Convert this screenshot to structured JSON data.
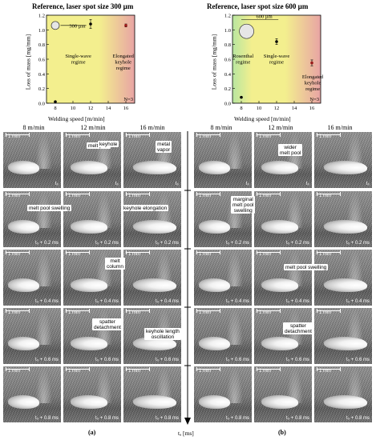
{
  "charts": [
    {
      "title": "Reference, laser spot size 300 µm",
      "spot_label": "300 µm",
      "ylabel": "Loss of mass [mg/mm]",
      "xlabel": "Welding speed [m/min]",
      "n_label": "N=3",
      "yticks": [
        "0.0",
        "0.2",
        "0.4",
        "0.6",
        "0.8",
        "1.0",
        "1.2"
      ],
      "xticks": [
        "8",
        "10",
        "12",
        "14",
        "16"
      ],
      "regimes": [
        {
          "label": "Single-wave\nregime"
        },
        {
          "label": "Elongated\nkeyhole\nregime"
        }
      ],
      "colors": {
        "yellow": "#f3ef8e",
        "red": "#e8a4a4",
        "green": "#b8e6a0"
      }
    },
    {
      "title": "Reference, laser spot size 600 µm",
      "spot_label": "600 µm",
      "ylabel": "Loss of mass [mg/mm]",
      "xlabel": "Welding speed [m/min]",
      "n_label": "N=3",
      "yticks": [
        "0.0",
        "0.2",
        "0.4",
        "0.6",
        "0.8",
        "1.0",
        "1.2"
      ],
      "xticks": [
        "8",
        "10",
        "12",
        "14",
        "16"
      ],
      "regimes": [
        {
          "label": "Rosenthal\nregime"
        },
        {
          "label": "Single-wave\nregime"
        },
        {
          "label": "Elongated\nkeyhole\nregime"
        }
      ],
      "colors": {
        "yellow": "#f3ef8e",
        "red": "#e8a4a4",
        "green": "#b8e6a0"
      }
    }
  ],
  "chart_data": [
    {
      "type": "scatter",
      "title": "Reference, laser spot size 300 µm",
      "xlabel": "Welding speed [m/min]",
      "ylabel": "Loss of mass [mg/mm]",
      "xlim": [
        7,
        17
      ],
      "ylim": [
        0,
        1.2
      ],
      "x": [
        8,
        12,
        16
      ],
      "y": [
        0.02,
        1.08,
        1.06
      ],
      "yerr": [
        0.005,
        0.06,
        0.02
      ],
      "point_colors": [
        "#000000",
        "#000000",
        "#9b1b1b"
      ]
    },
    {
      "type": "scatter",
      "title": "Reference, laser spot size 600 µm",
      "xlabel": "Welding speed [m/min]",
      "ylabel": "Loss of mass [mg/mm]",
      "xlim": [
        7,
        17
      ],
      "ylim": [
        0,
        1.2
      ],
      "x": [
        8,
        12,
        16
      ],
      "y": [
        0.08,
        0.84,
        0.55
      ],
      "yerr": [
        0.01,
        0.04,
        0.04
      ],
      "point_colors": [
        "#000000",
        "#000000",
        "#9b1b1b"
      ]
    }
  ],
  "speeds": [
    "8 m/min",
    "12 m/min",
    "16 m/min"
  ],
  "times": [
    "t₀",
    "t₀ + 0.2 ms",
    "t₀ + 0.4 ms",
    "t₀ + 0.6 ms",
    "t₀ + 0.8 ms"
  ],
  "scale_label": "1 mm",
  "time_axis_label": "tₐ [ms]",
  "sub_a": "(a)",
  "sub_b": "(b)",
  "annotations_a": {
    "melt_pool": "melt pool",
    "keyhole": "keyhole",
    "metal_vapor": "metal\nvapor",
    "melt_pool_swelling": "melt pool swelling",
    "keyhole_elongation": "keyhole elongation",
    "melt_column": "melt\ncolumn",
    "spatter_detachment": "spatter\ndetachment",
    "keyhole_length_oscillation": "keyhole length\noscillation"
  },
  "annotations_b": {
    "wider_melt_pool": "wider\nmelt pool",
    "marginal_melt_pool_swelling": "marginal\nmelt pool\nswelling",
    "melt_pool_swelling": "melt pool swelling",
    "spatter_detachment": "spatter\ndetachment"
  }
}
